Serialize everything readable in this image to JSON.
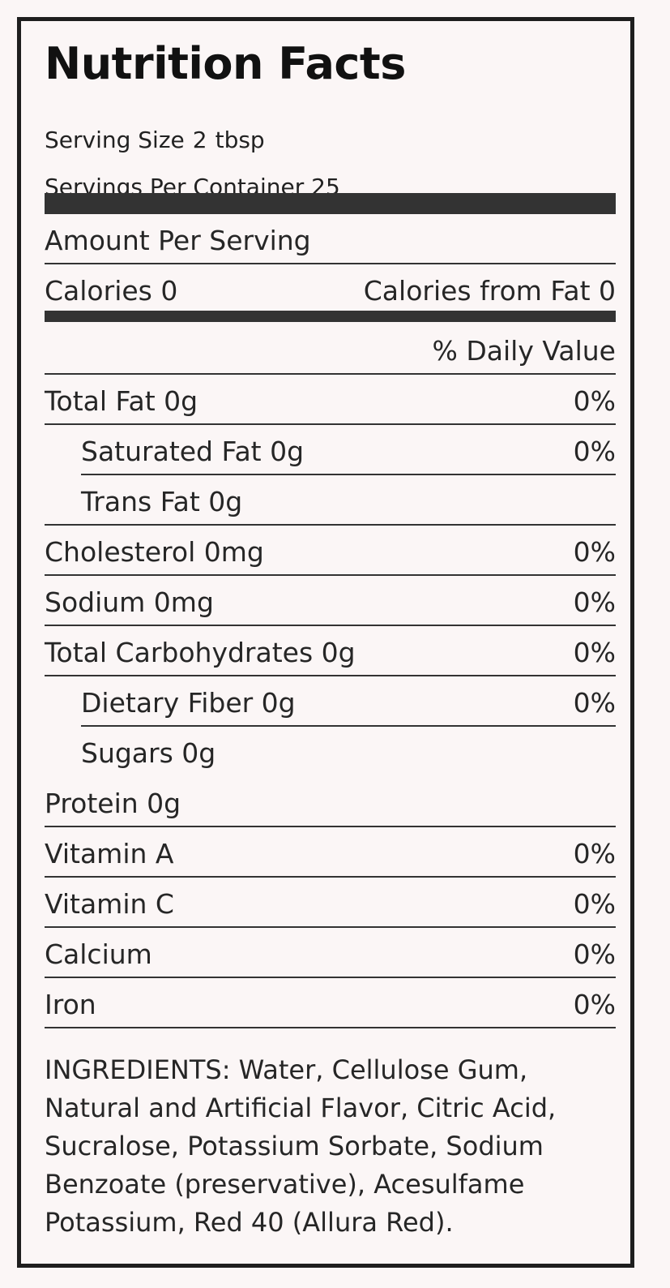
{
  "label": {
    "title": "Nutrition Facts",
    "serving_size_label": "Serving Size",
    "serving_size_value": "2",
    "serving_size_unit": "tbsp",
    "servings_per_container": "Servings Per Container 25",
    "amount_per_serving": "Amount Per Serving",
    "calories": "Calories 0",
    "calories_from_fat": "Calories from Fat 0",
    "daily_value_header": "% Daily Value"
  },
  "nutrients": [
    {
      "name": "Total Fat 0g",
      "dv": "0%"
    },
    {
      "name": "Saturated Fat 0g",
      "dv": "0%"
    },
    {
      "name": "Trans Fat 0g",
      "dv": ""
    },
    {
      "name": "Cholesterol 0mg",
      "dv": "0%"
    },
    {
      "name": "Sodium 0mg",
      "dv": "0%"
    },
    {
      "name": "Total Carbohydrates 0g",
      "dv": "0%"
    },
    {
      "name": "Dietary Fiber 0g",
      "dv": "0%"
    },
    {
      "name": "Sugars 0g",
      "dv": ""
    },
    {
      "name": "Protein 0g",
      "dv": ""
    },
    {
      "name": "Vitamin A",
      "dv": "0%"
    },
    {
      "name": "Vitamin C",
      "dv": "0%"
    },
    {
      "name": "Calcium",
      "dv": "0%"
    },
    {
      "name": "Iron",
      "dv": "0%"
    }
  ],
  "ingredients": "INGREDIENTS: Water, Cellulose Gum, Natural and Artificial Flavor, Citric Acid, Sucralose, Potassium Sorbate, Sodium Benzoate (preservative), Acesulfame Potassium, Red 40 (Allura Red)."
}
